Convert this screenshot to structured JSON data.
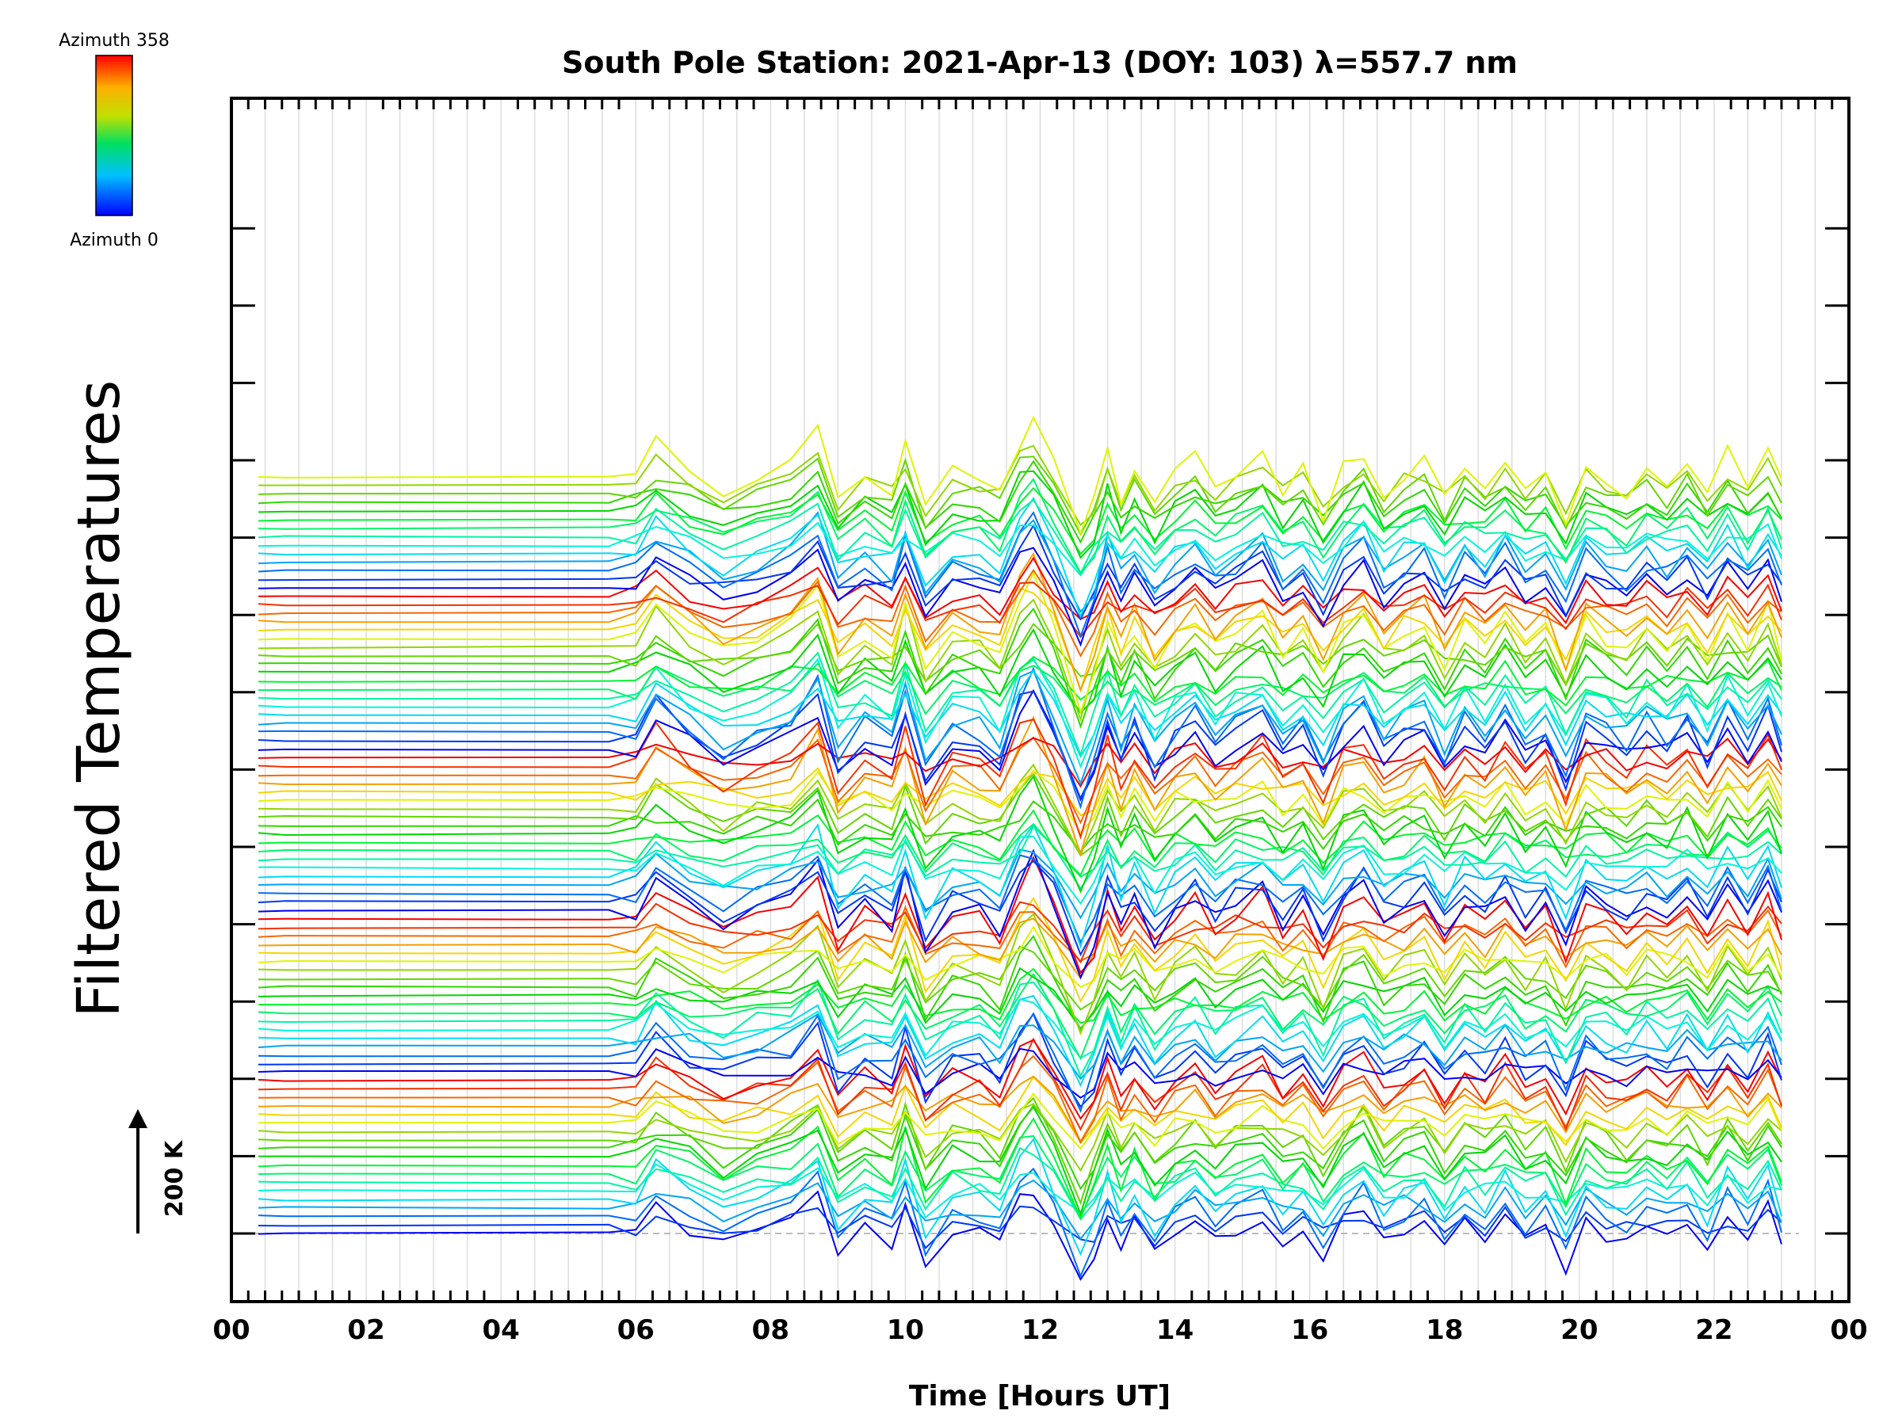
{
  "chart_data": {
    "type": "line",
    "title": "South Pole Station: 2021-Apr-13 (DOY: 103) λ=557.7 nm",
    "xlabel": "Time [Hours UT]",
    "ylabel": "Filtered Temperatures",
    "xlim": [
      0,
      24
    ],
    "x_ticks": [
      "00",
      "02",
      "04",
      "06",
      "08",
      "10",
      "12",
      "14",
      "16",
      "18",
      "20",
      "22",
      "00"
    ],
    "grid": true,
    "stack_spacing_k": 14.3,
    "scale_bar_label": "200 K",
    "colorbar": {
      "top_label": "Azimuth 358",
      "bottom_label": "Azimuth 0",
      "colormap": "rainbow"
    },
    "azimuth_cycle": [
      0,
      20,
      40,
      60,
      80,
      100,
      120,
      140,
      160,
      180,
      200,
      220,
      240,
      260,
      280,
      300,
      320,
      340,
      358
    ],
    "n_traces": 90,
    "times": [
      0.4,
      0.8,
      5.6,
      6.0,
      6.3,
      6.8,
      7.3,
      7.8,
      8.3,
      8.7,
      9.0,
      9.4,
      9.8,
      10.0,
      10.3,
      10.7,
      11.1,
      11.4,
      11.7,
      11.9,
      12.2,
      12.6,
      12.8,
      13.0,
      13.2,
      13.4,
      13.7,
      14.0,
      14.3,
      14.6,
      14.9,
      15.3,
      15.6,
      15.9,
      16.2,
      16.5,
      16.8,
      17.1,
      17.4,
      17.7,
      18.0,
      18.3,
      18.6,
      18.9,
      19.2,
      19.5,
      19.8,
      20.1,
      20.4,
      20.7,
      21.0,
      21.3,
      21.6,
      21.9,
      22.2,
      22.5,
      22.8,
      23.0
    ],
    "common_deviation_k": [
      0,
      0,
      0,
      0,
      60,
      10,
      -30,
      0,
      20,
      80,
      -40,
      10,
      -20,
      60,
      -60,
      10,
      0,
      -30,
      70,
      100,
      20,
      -110,
      -50,
      40,
      -30,
      20,
      -50,
      0,
      30,
      -20,
      10,
      40,
      -20,
      10,
      -60,
      20,
      50,
      -20,
      10,
      30,
      -40,
      20,
      -10,
      40,
      -20,
      10,
      -70,
      30,
      0,
      -20,
      20,
      -10,
      30,
      -30,
      40,
      -10,
      50,
      -20
    ]
  }
}
